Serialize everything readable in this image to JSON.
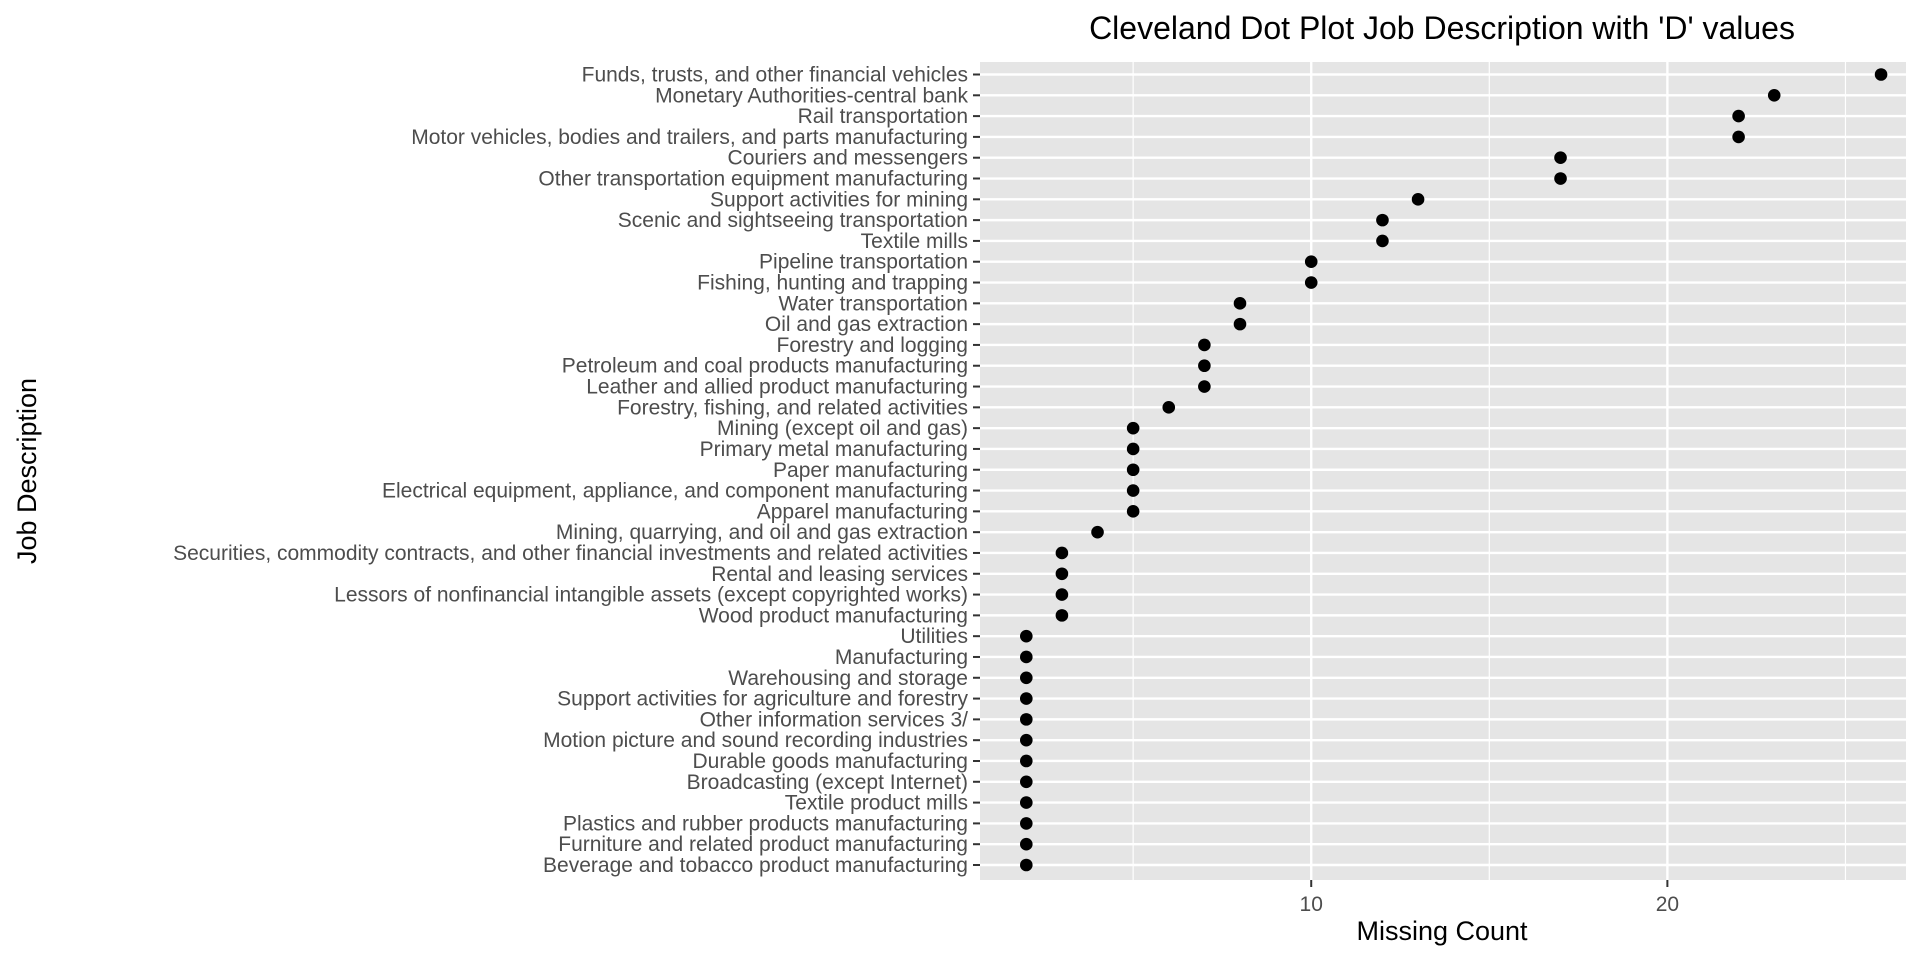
{
  "chart_data": {
    "type": "scatter",
    "title": "Cleveland Dot Plot Job Description with 'D' values",
    "xlabel": "Missing Count",
    "ylabel": "Job Description",
    "xlim": [
      0.7,
      26.7
    ],
    "x_ticks": [
      10,
      20
    ],
    "grid": true,
    "legend": "none",
    "colors": {
      "panel": "#e5e5e5",
      "gridline": "#ffffff",
      "point": "#000000",
      "tick_label": "#4d4d4d"
    },
    "categories": [
      "Funds, trusts, and other financial vehicles",
      "Monetary Authorities-central bank",
      "Rail transportation",
      "Motor vehicles, bodies and trailers, and parts manufacturing",
      "Couriers and messengers",
      "Other transportation equipment manufacturing",
      "Support activities for mining",
      "Scenic and sightseeing transportation",
      "Textile mills",
      "Pipeline transportation",
      "Fishing, hunting and trapping",
      "Water transportation",
      "Oil and gas extraction",
      "Forestry and logging",
      "Petroleum and coal products manufacturing",
      "Leather and allied product manufacturing",
      "Forestry, fishing, and related activities",
      "Mining (except oil and gas)",
      "Primary metal manufacturing",
      "Paper manufacturing",
      "Electrical equipment, appliance, and component manufacturing",
      "Apparel manufacturing",
      "Mining, quarrying, and oil and gas extraction",
      "Securities, commodity contracts, and other financial investments and related activities",
      "Rental and leasing services",
      "Lessors of nonfinancial intangible assets (except copyrighted works)",
      "Wood product manufacturing",
      "Utilities",
      "Manufacturing",
      "Warehousing and storage",
      "Support activities for agriculture and forestry",
      "Other information services 3/",
      "Motion picture and sound recording industries",
      "Durable goods manufacturing",
      "Broadcasting (except Internet)",
      "Textile product mills",
      "Plastics and rubber products manufacturing",
      "Furniture and related product manufacturing",
      "Beverage and tobacco product manufacturing"
    ],
    "values": [
      26,
      23,
      22,
      22,
      17,
      17,
      13,
      12,
      12,
      10,
      10,
      8,
      8,
      7,
      7,
      7,
      6,
      5,
      5,
      5,
      5,
      5,
      4,
      3,
      3,
      3,
      3,
      2,
      2,
      2,
      2,
      2,
      2,
      2,
      2,
      2,
      2,
      2,
      2
    ]
  }
}
